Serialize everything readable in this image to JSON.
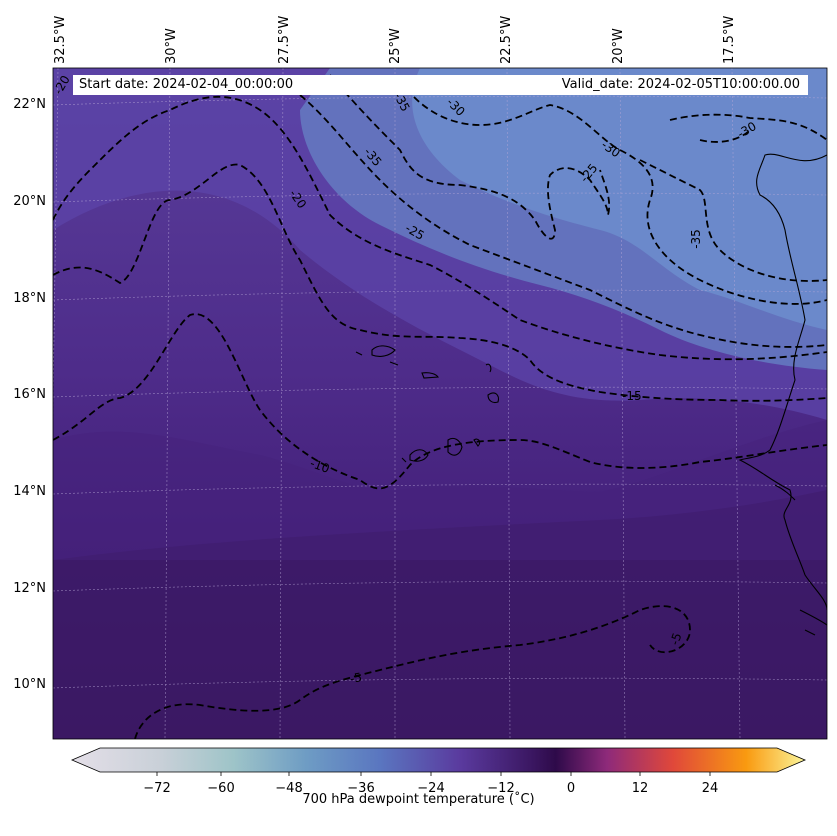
{
  "header": {
    "start_label": "Start date: 2024-02-04_00:00:00",
    "valid_label": "Valid_date: 2024-02-05T10:00:00.00"
  },
  "longitudes": [
    "32.5°W",
    "30°W",
    "27.5°W",
    "25°W",
    "22.5°W",
    "20°W",
    "17.5°W"
  ],
  "latitudes": [
    "22°N",
    "20°N",
    "18°N",
    "16°N",
    "14°N",
    "12°N",
    "10°N"
  ],
  "contour_labels": [
    "-35",
    "-35",
    "-30",
    "-30",
    "-30",
    "-25",
    "-25",
    "-20",
    "-20",
    "-15",
    "-10",
    "-5",
    "-5",
    "-35"
  ],
  "colorbar": {
    "title": "700 hPa dewpoint temperature ($^\\circ$C)",
    "ticks": [
      "−72",
      "−60",
      "−48",
      "−36",
      "−24",
      "−12",
      "0",
      "12",
      "24"
    ],
    "range": [
      -84,
      36
    ],
    "colors": {
      "low": "#e4dfe8",
      "mid_cyan": "#9ec4c8",
      "blue": "#5a86c0",
      "purple": "#5a3a9e",
      "dark": "#2e0a4a",
      "magenta": "#8e2a7a",
      "red": "#e0483a",
      "orange": "#f99a10",
      "yellow": "#fbf59a"
    }
  },
  "map_colors": {
    "dry_region": "#6a82c4",
    "mid_region": "#5a3f9c",
    "moist_region": "#3d1a66"
  }
}
